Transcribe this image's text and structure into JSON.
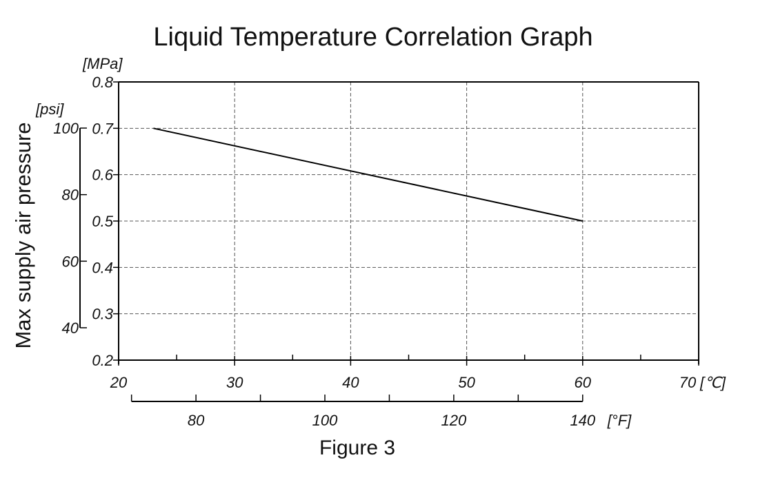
{
  "chart_data": {
    "type": "line",
    "title": "Liquid Temperature Correlation Graph",
    "caption": "Figure 3",
    "ylabel": "Max supply air pressure",
    "y_unit": "[MPa]",
    "y2_unit": "[psi]",
    "x_unit": "[℃]",
    "x2_unit": "[°F]",
    "xlim": [
      20,
      70
    ],
    "ylim": [
      0.2,
      0.8
    ],
    "x_ticks": [
      20,
      30,
      40,
      50,
      60,
      70
    ],
    "y_ticks": [
      0.2,
      0.3,
      0.4,
      0.5,
      0.6,
      0.7,
      0.8
    ],
    "y_tick_labels": [
      "0.2",
      "0.3",
      "0.4",
      "0.5",
      "0.6",
      "0.7",
      "0.8"
    ],
    "psi_ticks": [
      40,
      60,
      80,
      100
    ],
    "f_ticks": [
      80,
      100,
      120,
      140
    ],
    "f_range": [
      70,
      140
    ],
    "grid": true,
    "series": [
      {
        "x": [
          23,
          60
        ],
        "y": [
          0.7,
          0.5
        ]
      }
    ]
  }
}
